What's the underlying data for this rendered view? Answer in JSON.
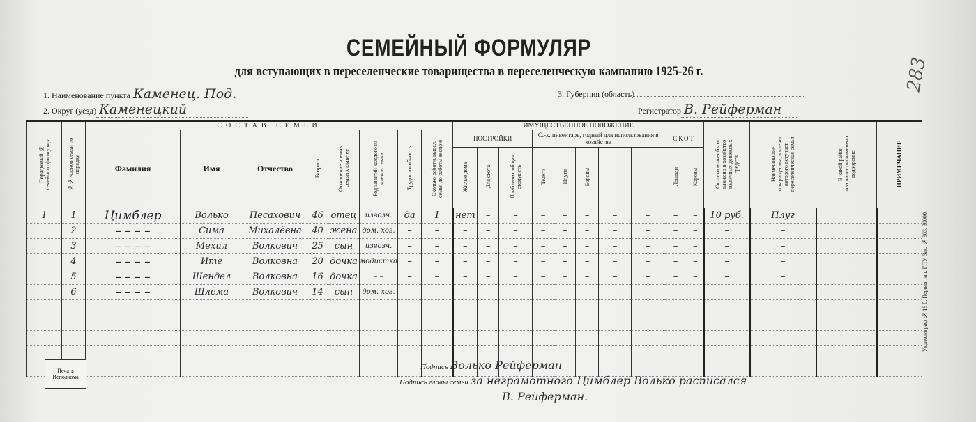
{
  "title": "СЕМЕЙНЫЙ ФОРМУЛЯР",
  "subtitle": "для вступающих в переселенческие товарищества в переселенческую кампанию 1925-26 г.",
  "page_number": "283",
  "fields": {
    "place_label": "1. Наименование пункта",
    "place_value": "Каменец. Под.",
    "district_label": "2. Округ (уезд)",
    "district_value": "Каменецкий",
    "province_label": "3. Губерния (область)",
    "province_value": "",
    "registrar_label": "Регистратор",
    "registrar_value": "В. Рейферман"
  },
  "table": {
    "group_family": "СОСТАВ СЕМЬИ",
    "group_property": "ИМУЩЕСТВЕННОЕ ПОЛОЖЕНИЕ",
    "sub_buildings": "ПОСТРОЙКИ",
    "sub_inventory": "С.-х. инвентарь, годный для использования в хозяйстве",
    "sub_livestock": "СКОТ",
    "columns": [
      "Порядковый № семейного формуляра",
      "№№ членов семьи по порядку",
      "Фамилия",
      "Имя",
      "Отчество",
      "Возраст",
      "Отношение членов семьи к главе ее",
      "Род занятий каждого из членов семьи",
      "Трудоспособность",
      "Сколько работн. выдел. семья до работы весною",
      "Жилые дома",
      "Для скота",
      "Приблизит. общая стоимость",
      "Телеги",
      "Плуги",
      "Бороны",
      "",
      "",
      "Лошади",
      "Коровы",
      "Сколько может быть вложено в хозяйство наличных денежных средств",
      "Наименование товарищества, в члены которого вступает переселенческая семья",
      "В какой район товарищества намечено водворение",
      "ПРИМЕЧАНИЕ"
    ],
    "rows": [
      [
        "1",
        "1",
        "Цимблер",
        "Волько",
        "Песахович",
        "46",
        "отец",
        "извозч.",
        "да",
        "1",
        "нет",
        "–",
        "–",
        "–",
        "–",
        "–",
        "–",
        "–",
        "–",
        "–",
        "10 руб.",
        "Плуг",
        "",
        ""
      ],
      [
        "",
        "2",
        "– – – –",
        "Сима",
        "Михалёвна",
        "40",
        "жена",
        "дом. хоз.",
        "–",
        "–",
        "–",
        "–",
        "–",
        "–",
        "–",
        "–",
        "–",
        "–",
        "–",
        "–",
        "–",
        "–",
        "",
        ""
      ],
      [
        "",
        "3",
        "– – – –",
        "Мехил",
        "Волкович",
        "25",
        "сын",
        "извозч.",
        "–",
        "–",
        "–",
        "–",
        "–",
        "–",
        "–",
        "–",
        "–",
        "–",
        "–",
        "–",
        "–",
        "–",
        "",
        ""
      ],
      [
        "",
        "4",
        "– – – –",
        "Ите",
        "Волковна",
        "20",
        "дочка",
        "модистка",
        "–",
        "–",
        "–",
        "–",
        "–",
        "–",
        "–",
        "–",
        "–",
        "–",
        "–",
        "–",
        "–",
        "–",
        "",
        ""
      ],
      [
        "",
        "5",
        "– – – –",
        "Шендел",
        "Волковна",
        "16",
        "дочка",
        "– –",
        "–",
        "–",
        "–",
        "–",
        "–",
        "–",
        "–",
        "–",
        "–",
        "–",
        "–",
        "–",
        "–",
        "–",
        "",
        ""
      ],
      [
        "",
        "6",
        "– – – –",
        "Шлёма",
        "Волкович",
        "14",
        "сын",
        "дом. хоз.",
        "–",
        "–",
        "–",
        "–",
        "–",
        "–",
        "–",
        "–",
        "–",
        "–",
        "–",
        "–",
        "–",
        "–",
        "",
        ""
      ],
      [
        "",
        "",
        "",
        "",
        "",
        "",
        "",
        "",
        "",
        "",
        "",
        "",
        "",
        "",
        "",
        "",
        "",
        "",
        "",
        "",
        "",
        "",
        "",
        ""
      ],
      [
        "",
        "",
        "",
        "",
        "",
        "",
        "",
        "",
        "",
        "",
        "",
        "",
        "",
        "",
        "",
        "",
        "",
        "",
        "",
        "",
        "",
        "",
        "",
        ""
      ],
      [
        "",
        "",
        "",
        "",
        "",
        "",
        "",
        "",
        "",
        "",
        "",
        "",
        "",
        "",
        "",
        "",
        "",
        "",
        "",
        "",
        "",
        "",
        "",
        ""
      ],
      [
        "",
        "",
        "",
        "",
        "",
        "",
        "",
        "",
        "",
        "",
        "",
        "",
        "",
        "",
        "",
        "",
        "",
        "",
        "",
        "",
        "",
        "",
        "",
        ""
      ],
      [
        "",
        "",
        "",
        "",
        "",
        "",
        "",
        "",
        "",
        "",
        "",
        "",
        "",
        "",
        "",
        "",
        "",
        "",
        "",
        "",
        "",
        "",
        "",
        ""
      ]
    ]
  },
  "signatures": {
    "sign_label": "Подпись",
    "sign_value": "Волько Рейферман",
    "head_label": "Подпись главы семьи",
    "head_value": "за неграмотного Цимблер Волько расписался",
    "head_value2": "В. Рейферман."
  },
  "stamp": {
    "line1": "Печать",
    "line2": "Исполкома"
  },
  "printer_note": "Укрполиграф № 19 б. Первая тип. ГПУ. Зак. № 963. 30000."
}
